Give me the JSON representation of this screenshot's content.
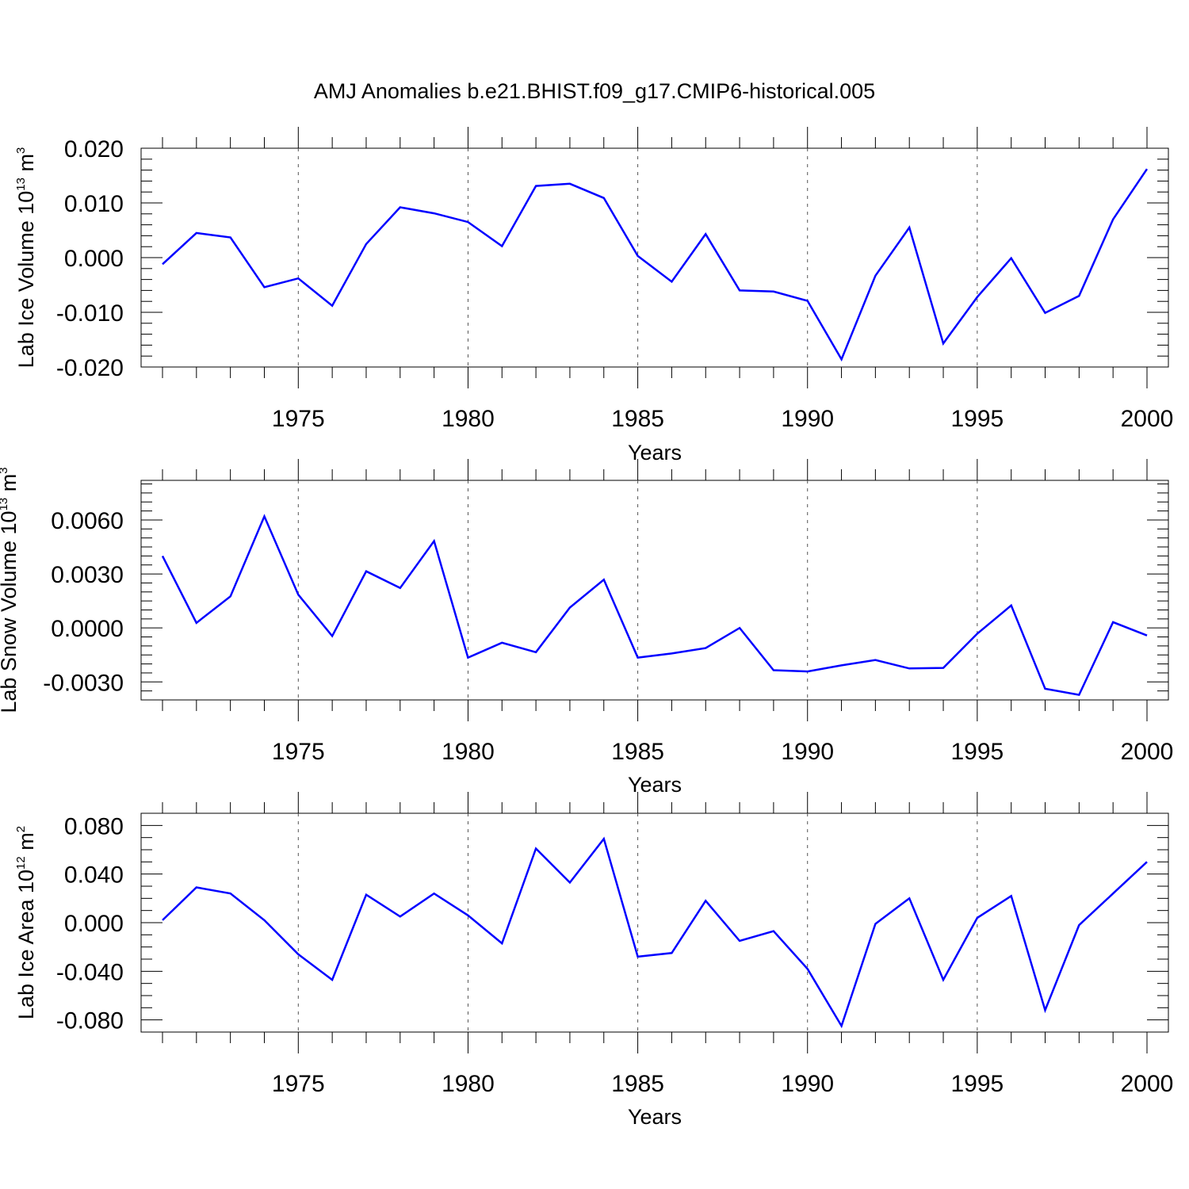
{
  "figure_title": "AMJ Anomalies b.e21.BHIST.f09_g17.CMIP6-historical.005",
  "colors": {
    "series": "#0000ff",
    "axis": "#000000",
    "grid": "#555555"
  },
  "chart_data": [
    {
      "type": "line",
      "title": "",
      "xlabel": "Years",
      "ylabel": {
        "text": "Lab Ice Volume 10",
        "sup": "13",
        "unit": "m",
        "unit_sup": "3"
      },
      "xlim": [
        1971,
        2000
      ],
      "ylim": [
        -0.02,
        0.02
      ],
      "x_major_ticks": [
        1975,
        1980,
        1985,
        1990,
        1995,
        2000
      ],
      "x_tick_labels": [
        "1975",
        "1980",
        "1985",
        "1990",
        "1995",
        "2000"
      ],
      "y_major_ticks": [
        -0.02,
        -0.01,
        0.0,
        0.01,
        0.02
      ],
      "y_tick_labels": [
        "-0.020",
        "-0.010",
        "0.000",
        "0.010",
        "0.020"
      ],
      "y_minor_step": 0.002,
      "grid": "vertical dashed at major x ticks",
      "series": [
        {
          "name": "Lab Ice Volume",
          "x": [
            1971,
            1972,
            1973,
            1974,
            1975,
            1976,
            1977,
            1978,
            1979,
            1980,
            1981,
            1982,
            1983,
            1984,
            1985,
            1986,
            1987,
            1988,
            1989,
            1990,
            1991,
            1992,
            1993,
            1994,
            1995,
            1996,
            1997,
            1998,
            1999,
            2000
          ],
          "values": [
            -0.0012,
            0.0045,
            0.0037,
            -0.0054,
            -0.0038,
            -0.0088,
            0.0025,
            0.0092,
            0.0081,
            0.0065,
            0.0021,
            0.0131,
            0.0135,
            0.0109,
            0.0003,
            -0.0044,
            0.0043,
            -0.006,
            -0.0062,
            -0.0079,
            -0.0186,
            -0.0033,
            0.0055,
            -0.0157,
            -0.0072,
            -0.0001,
            -0.0101,
            -0.007,
            0.007,
            0.0162
          ]
        }
      ]
    },
    {
      "type": "line",
      "title": "",
      "xlabel": "Years",
      "ylabel": {
        "text": "Lab Snow Volume 10",
        "sup": "13",
        "unit": "m",
        "unit_sup": "3"
      },
      "xlim": [
        1971,
        2000
      ],
      "ylim": [
        -0.004,
        0.0082
      ],
      "x_major_ticks": [
        1975,
        1980,
        1985,
        1990,
        1995,
        2000
      ],
      "x_tick_labels": [
        "1975",
        "1980",
        "1985",
        "1990",
        "1995",
        "2000"
      ],
      "y_major_ticks": [
        -0.003,
        0.0,
        0.003,
        0.006
      ],
      "y_tick_labels": [
        "-0.0030",
        "0.0000",
        "0.0030",
        "0.0060"
      ],
      "y_minor_step": 0.0005,
      "grid": "vertical dashed at major x ticks",
      "series": [
        {
          "name": "Lab Snow Volume",
          "x": [
            1971,
            1972,
            1973,
            1974,
            1975,
            1976,
            1977,
            1978,
            1979,
            1980,
            1981,
            1982,
            1983,
            1984,
            1985,
            1986,
            1987,
            1988,
            1989,
            1990,
            1991,
            1992,
            1993,
            1994,
            1995,
            1996,
            1997,
            1998,
            1999,
            2000
          ],
          "values": [
            0.004,
            0.00028,
            0.00175,
            0.0062,
            0.00185,
            -0.00045,
            0.00315,
            0.00222,
            0.00483,
            -0.00165,
            -0.00082,
            -0.00135,
            0.00113,
            0.00268,
            -0.00165,
            -0.00142,
            -0.00112,
            0.0,
            -0.00235,
            -0.00242,
            -0.00208,
            -0.00178,
            -0.00225,
            -0.00222,
            -0.00032,
            0.00125,
            -0.00338,
            -0.00372,
            0.00032,
            -0.00042
          ]
        }
      ]
    },
    {
      "type": "line",
      "title": "",
      "xlabel": "Years",
      "ylabel": {
        "text": "Lab Ice Area 10",
        "sup": "12",
        "unit": "m",
        "unit_sup": "2"
      },
      "xlim": [
        1971,
        2000
      ],
      "ylim": [
        -0.09,
        0.09
      ],
      "x_major_ticks": [
        1975,
        1980,
        1985,
        1990,
        1995,
        2000
      ],
      "x_tick_labels": [
        "1975",
        "1980",
        "1985",
        "1990",
        "1995",
        "2000"
      ],
      "y_major_ticks": [
        -0.08,
        -0.04,
        0.0,
        0.04,
        0.08
      ],
      "y_tick_labels": [
        "-0.080",
        "-0.040",
        "0.000",
        "0.040",
        "0.080"
      ],
      "y_minor_step": 0.01,
      "grid": "vertical dashed at major x ticks",
      "series": [
        {
          "name": "Lab Ice Area",
          "x": [
            1971,
            1972,
            1973,
            1974,
            1975,
            1976,
            1977,
            1978,
            1979,
            1980,
            1981,
            1982,
            1983,
            1984,
            1985,
            1986,
            1987,
            1988,
            1989,
            1990,
            1991,
            1992,
            1993,
            1994,
            1995,
            1996,
            1997,
            1998,
            1999,
            2000
          ],
          "values": [
            0.002,
            0.029,
            0.024,
            0.002,
            -0.026,
            -0.047,
            0.023,
            0.005,
            0.024,
            0.006,
            -0.017,
            0.061,
            0.033,
            0.069,
            -0.028,
            -0.025,
            0.018,
            -0.015,
            -0.007,
            -0.038,
            -0.085,
            -0.001,
            0.02,
            -0.047,
            0.004,
            0.022,
            -0.072,
            -0.002,
            0.024,
            0.05
          ]
        }
      ]
    }
  ]
}
